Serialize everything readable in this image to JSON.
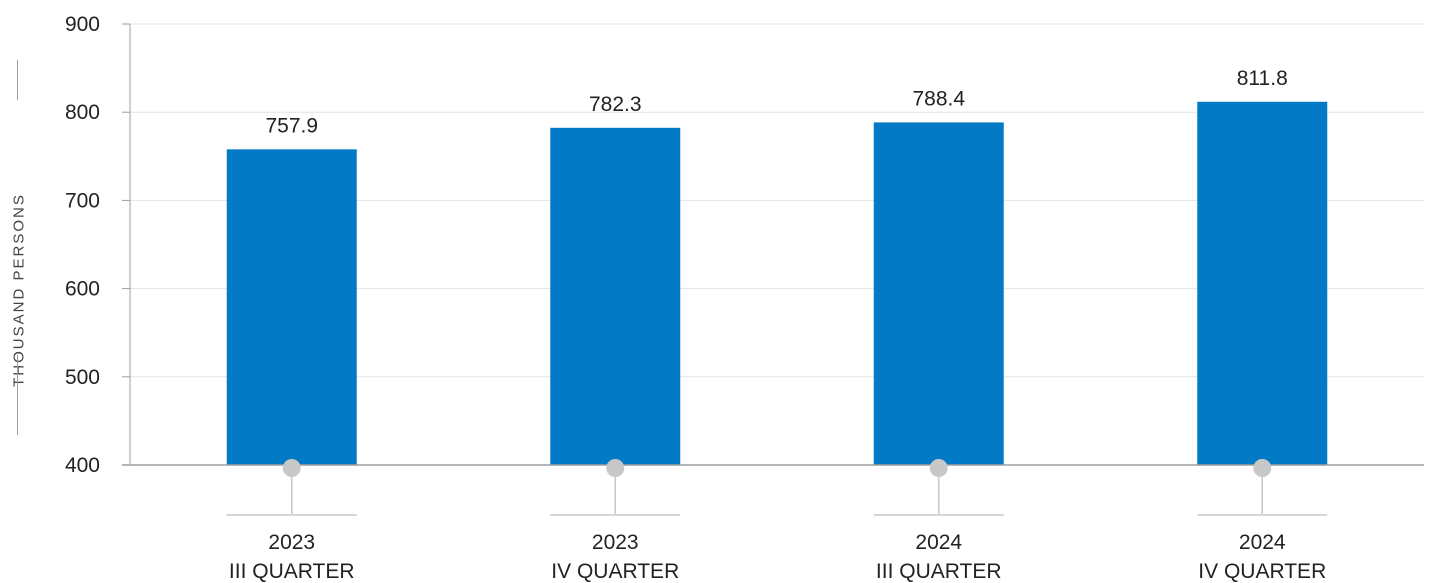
{
  "chart_data": {
    "type": "bar",
    "categories": [
      [
        "2023",
        "III QUARTER"
      ],
      [
        "2023",
        "IV QUARTER"
      ],
      [
        "2024",
        "III QUARTER"
      ],
      [
        "2024",
        "IV QUARTER"
      ]
    ],
    "values": [
      757.9,
      782.3,
      788.4,
      811.8
    ],
    "value_labels": [
      "757.9",
      "782.3",
      "788.4",
      "811.8"
    ],
    "ylabel": "THOUSAND PERSONS",
    "ylim": [
      400,
      900
    ],
    "yticks": [
      400,
      500,
      600,
      700,
      800,
      900
    ],
    "grid": true,
    "colors": {
      "bar": "#037ac5",
      "grid": "#e3e3e3",
      "axis": "#9e9e9e",
      "marker": "#c8c8c8",
      "text": "#222222"
    }
  }
}
